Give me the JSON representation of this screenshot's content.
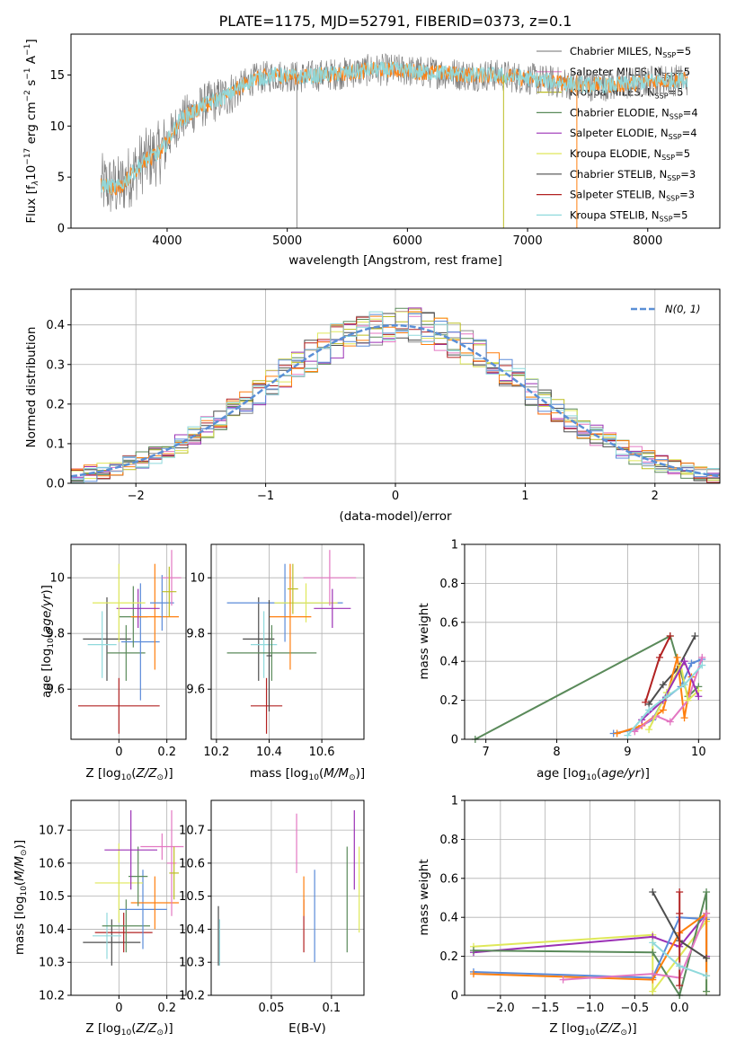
{
  "figure_title": "PLATE=1175, MJD=52791, FIBERID=0373, z=0.1",
  "colors": {
    "chabrier_miles": "#8c8c8c",
    "salpeter_miles": "#e377c2",
    "kroupa_miles": "#bcbd22",
    "chabrier_elodie": "#5a8a5a",
    "salpeter_elodie": "#9b30b5",
    "kroupa_elodie": "#dfe85a",
    "chabrier_stelib": "#4d4d4d",
    "salpeter_stelib": "#b22222",
    "kroupa_stelib": "#8fd9dc",
    "orange": "#ff7f0e",
    "blue": "#5b8bd9",
    "gaussian": "#5a8fd6"
  },
  "legend_entries": [
    {
      "prefix": "Chabrier MILES, N",
      "sub": "SSP",
      "suffix": "=5",
      "color": "chabrier_miles"
    },
    {
      "prefix": "Salpeter MILES, N",
      "sub": "SSP",
      "suffix": "=5",
      "color": "salpeter_miles"
    },
    {
      "prefix": "Kroupa MILES, N",
      "sub": "SSP",
      "suffix": "=5",
      "color": "kroupa_miles"
    },
    {
      "prefix": "Chabrier ELODIE, N",
      "sub": "SSP",
      "suffix": "=4",
      "color": "chabrier_elodie"
    },
    {
      "prefix": "Salpeter ELODIE, N",
      "sub": "SSP",
      "suffix": "=4",
      "color": "salpeter_elodie"
    },
    {
      "prefix": "Kroupa ELODIE, N",
      "sub": "SSP",
      "suffix": "=5",
      "color": "kroupa_elodie"
    },
    {
      "prefix": "Chabrier STELIB, N",
      "sub": "SSP",
      "suffix": "=3",
      "color": "chabrier_stelib"
    },
    {
      "prefix": "Salpeter STELIB, N",
      "sub": "SSP",
      "suffix": "=3",
      "color": "salpeter_stelib"
    },
    {
      "prefix": "Kroupa STELIB, N",
      "sub": "SSP",
      "suffix": "=5",
      "color": "kroupa_stelib"
    }
  ],
  "chart_data": [
    {
      "id": "spectrum",
      "type": "line",
      "xlabel": "wavelength [Angstrom, rest frame]",
      "ylabel_parts": [
        "Flux [f",
        "λ",
        "10",
        "−17",
        " erg cm",
        "−2",
        " s",
        "−1",
        " A",
        "−1",
        "]"
      ],
      "xlim": [
        3200,
        8600
      ],
      "ylim": [
        0,
        19
      ],
      "xticks": [
        4000,
        5000,
        6000,
        7000,
        8000
      ],
      "yticks": [
        0,
        5,
        10,
        15
      ],
      "legend_position": "upper right",
      "observed_anchors": {
        "x": [
          3450,
          3600,
          3800,
          3950,
          4100,
          4300,
          4500,
          4700,
          4900,
          5100,
          5300,
          5500,
          5700,
          5900,
          6100,
          6300,
          6500,
          6700,
          6900,
          7100,
          7300,
          7500,
          7700,
          7900,
          8100,
          8300
        ],
        "y": [
          4.2,
          4.0,
          6.5,
          7.5,
          10.5,
          12.0,
          13.0,
          14.5,
          15.0,
          14.8,
          15.0,
          15.2,
          15.5,
          15.5,
          15.3,
          15.2,
          15.0,
          15.0,
          14.8,
          14.5,
          14.2,
          14.0,
          14.0,
          14.2,
          14.5,
          14.5
        ]
      },
      "model_drop_lines": [
        {
          "x": 6800,
          "color": "kroupa_miles"
        },
        {
          "x": 7410,
          "color": "orange"
        },
        {
          "x": 5080,
          "color": "chabrier_miles"
        }
      ]
    },
    {
      "id": "residuals",
      "type": "step-histogram",
      "xlabel": "(data-model)/error",
      "ylabel": "Normed distribution",
      "xlim": [
        -2.5,
        2.5
      ],
      "ylim": [
        0,
        0.49
      ],
      "xticks": [
        -2,
        -1,
        0,
        1,
        2
      ],
      "xtick_labels": [
        "−2",
        "−1",
        "0",
        "1",
        "2"
      ],
      "yticks": [
        0.0,
        0.1,
        0.2,
        0.3,
        0.4
      ],
      "ytick_labels": [
        "0.0",
        "0.1",
        "0.2",
        "0.3",
        "0.4"
      ],
      "bin_width": 0.1,
      "gaussian_label": "N(0, 1)",
      "legend_position": "upper right"
    },
    {
      "id": "age_vs_Z",
      "type": "errorbar",
      "xlabel": "Z [log10(Z/Z⊙)]",
      "ylabel": "age [log10(age/yr)]",
      "xlim": [
        -0.2,
        0.28
      ],
      "ylim": [
        9.42,
        10.12
      ],
      "xticks": [
        0.0,
        0.2
      ],
      "yticks": [
        9.6,
        9.8,
        10.0
      ],
      "points": [
        {
          "x": 0.0,
          "y": 9.54,
          "xerr": 0.17,
          "yerr": 0.1,
          "color": "salpeter_stelib"
        },
        {
          "x": -0.05,
          "y": 9.78,
          "xerr": 0.1,
          "yerr": 0.15,
          "color": "chabrier_stelib"
        },
        {
          "x": -0.07,
          "y": 9.76,
          "xerr": 0.06,
          "yerr": 0.12,
          "color": "kroupa_stelib"
        },
        {
          "x": 0.03,
          "y": 9.73,
          "xerr": 0.08,
          "yerr": 0.1,
          "color": "chabrier_elodie"
        },
        {
          "x": 0.09,
          "y": 9.77,
          "xerr": 0.08,
          "yerr": 0.21,
          "color": "blue"
        },
        {
          "x": 0.06,
          "y": 9.86,
          "xerr": 0.06,
          "yerr": 0.11,
          "color": "chabrier_elodie"
        },
        {
          "x": 0.15,
          "y": 9.86,
          "xerr": 0.1,
          "yerr": 0.19,
          "color": "orange"
        },
        {
          "x": 0.08,
          "y": 9.89,
          "xerr": 0.09,
          "yerr": 0.07,
          "color": "salpeter_elodie"
        },
        {
          "x": 0.0,
          "y": 9.91,
          "xerr": 0.11,
          "yerr": 0.14,
          "color": "kroupa_elodie"
        },
        {
          "x": 0.18,
          "y": 9.91,
          "xerr": 0.05,
          "yerr": 0.1,
          "color": "blue"
        },
        {
          "x": 0.22,
          "y": 10.0,
          "xerr": 0.04,
          "yerr": 0.1,
          "color": "salpeter_miles"
        },
        {
          "x": 0.21,
          "y": 9.95,
          "xerr": 0.03,
          "yerr": 0.09,
          "color": "kroupa_miles"
        }
      ]
    },
    {
      "id": "age_vs_mass",
      "type": "errorbar",
      "xlabel": "mass [log10(M/M⊙)]",
      "ylabel": "",
      "xlim": [
        10.18,
        10.76
      ],
      "ylim": [
        9.42,
        10.12
      ],
      "xticks": [
        10.2,
        10.4,
        10.6
      ],
      "yticks": [
        9.6,
        9.8,
        10.0
      ],
      "points": [
        {
          "x": 10.39,
          "y": 9.54,
          "xerr": 0.06,
          "yerr": 0.1,
          "color": "salpeter_stelib"
        },
        {
          "x": 10.36,
          "y": 9.78,
          "xerr": 0.06,
          "yerr": 0.15,
          "color": "chabrier_stelib"
        },
        {
          "x": 10.38,
          "y": 9.76,
          "xerr": 0.05,
          "yerr": 0.12,
          "color": "kroupa_stelib"
        },
        {
          "x": 10.41,
          "y": 9.73,
          "xerr": 0.17,
          "yerr": 0.1,
          "color": "chabrier_elodie"
        },
        {
          "x": 10.46,
          "y": 9.91,
          "xerr": 0.22,
          "yerr": 0.14,
          "color": "blue"
        },
        {
          "x": 10.54,
          "y": 9.91,
          "xerr": 0.12,
          "yerr": 0.07,
          "color": "kroupa_elodie"
        },
        {
          "x": 10.48,
          "y": 9.86,
          "xerr": 0.08,
          "yerr": 0.19,
          "color": "orange"
        },
        {
          "x": 10.64,
          "y": 9.89,
          "xerr": 0.07,
          "yerr": 0.07,
          "color": "salpeter_elodie"
        },
        {
          "x": 10.63,
          "y": 10.0,
          "xerr": 0.1,
          "yerr": 0.1,
          "color": "salpeter_miles"
        },
        {
          "x": 10.49,
          "y": 9.96,
          "xerr": 0.02,
          "yerr": 0.09,
          "color": "kroupa_miles"
        },
        {
          "x": 10.4,
          "y": 9.72,
          "xerr": 0.01,
          "yerr": 0.2,
          "color": "chabrier_stelib"
        }
      ]
    },
    {
      "id": "massweight_vs_age",
      "type": "line",
      "xlabel": "age [log10(age/yr)]",
      "ylabel": "mass weight",
      "xlim": [
        6.7,
        10.3
      ],
      "ylim": [
        0,
        1.0
      ],
      "xticks": [
        7,
        8,
        9,
        10
      ],
      "yticks": [
        0.0,
        0.2,
        0.4,
        0.6,
        0.8,
        1.0
      ],
      "series": [
        {
          "color": "chabrier_elodie",
          "x": [
            6.85,
            9.6,
            9.85,
            10.0
          ],
          "y": [
            0.0,
            0.53,
            0.22,
            0.27
          ]
        },
        {
          "color": "salpeter_stelib",
          "x": [
            9.25,
            9.45,
            9.6
          ],
          "y": [
            0.19,
            0.42,
            0.53
          ]
        },
        {
          "color": "chabrier_stelib",
          "x": [
            9.3,
            9.5,
            9.7,
            9.95
          ],
          "y": [
            0.18,
            0.28,
            0.36,
            0.53
          ]
        },
        {
          "color": "blue",
          "x": [
            8.8,
            9.1,
            9.35,
            9.5,
            9.75,
            9.9,
            10.05
          ],
          "y": [
            0.03,
            0.05,
            0.1,
            0.2,
            0.27,
            0.39,
            0.41
          ]
        },
        {
          "color": "orange",
          "x": [
            8.85,
            9.2,
            9.5,
            9.7,
            9.8,
            9.9
          ],
          "y": [
            0.03,
            0.07,
            0.15,
            0.42,
            0.11,
            0.32
          ]
        },
        {
          "color": "salpeter_miles",
          "x": [
            9.1,
            9.4,
            9.6,
            9.85,
            10.05
          ],
          "y": [
            0.04,
            0.12,
            0.09,
            0.2,
            0.42
          ]
        },
        {
          "color": "kroupa_elodie",
          "x": [
            9.3,
            9.55,
            9.75,
            9.85,
            10.0
          ],
          "y": [
            0.05,
            0.24,
            0.38,
            0.2,
            0.25
          ]
        },
        {
          "color": "salpeter_elodie",
          "x": [
            9.2,
            9.5,
            9.8,
            10.0
          ],
          "y": [
            0.1,
            0.2,
            0.4,
            0.22
          ]
        },
        {
          "color": "kroupa_stelib",
          "x": [
            9.0,
            9.3,
            9.55,
            9.8,
            10.05
          ],
          "y": [
            0.02,
            0.15,
            0.22,
            0.28,
            0.38
          ]
        }
      ]
    },
    {
      "id": "mass_vs_Z",
      "type": "errorbar",
      "xlabel": "Z [log10(Z/Z⊙)]",
      "ylabel": "mass [log10(M/M⊙)]",
      "xlim": [
        -0.2,
        0.28
      ],
      "ylim": [
        10.2,
        10.79
      ],
      "xticks": [
        0.0,
        0.2
      ],
      "yticks": [
        10.2,
        10.3,
        10.4,
        10.5,
        10.6,
        10.7
      ],
      "points": [
        {
          "x": -0.03,
          "y": 10.36,
          "xerr": 0.12,
          "yerr": 0.07,
          "color": "chabrier_stelib"
        },
        {
          "x": 0.02,
          "y": 10.39,
          "xerr": 0.12,
          "yerr": 0.06,
          "color": "salpeter_stelib"
        },
        {
          "x": -0.05,
          "y": 10.38,
          "xerr": 0.06,
          "yerr": 0.07,
          "color": "kroupa_stelib"
        },
        {
          "x": 0.03,
          "y": 10.41,
          "xerr": 0.1,
          "yerr": 0.08,
          "color": "chabrier_elodie"
        },
        {
          "x": 0.1,
          "y": 10.46,
          "xerr": 0.1,
          "yerr": 0.12,
          "color": "blue"
        },
        {
          "x": 0.15,
          "y": 10.48,
          "xerr": 0.1,
          "yerr": 0.08,
          "color": "orange"
        },
        {
          "x": 0.0,
          "y": 10.54,
          "xerr": 0.1,
          "yerr": 0.12,
          "color": "kroupa_elodie"
        },
        {
          "x": 0.08,
          "y": 10.56,
          "xerr": 0.04,
          "yerr": 0.09,
          "color": "chabrier_elodie"
        },
        {
          "x": 0.05,
          "y": 10.64,
          "xerr": 0.11,
          "yerr": 0.12,
          "color": "salpeter_elodie"
        },
        {
          "x": 0.18,
          "y": 10.65,
          "xerr": 0.09,
          "yerr": 0.04,
          "color": "salpeter_miles"
        },
        {
          "x": 0.22,
          "y": 10.6,
          "xerr": 0.02,
          "yerr": 0.16,
          "color": "salpeter_miles"
        },
        {
          "x": 0.23,
          "y": 10.57,
          "xerr": 0.02,
          "yerr": 0.08,
          "color": "kroupa_miles"
        }
      ]
    },
    {
      "id": "mass_vs_ebv",
      "type": "errorbar",
      "xlabel": "E(B-V)",
      "ylabel": "",
      "xlim": [
        0.0,
        0.127
      ],
      "ylim": [
        10.2,
        10.79
      ],
      "xticks": [
        0.05,
        0.1
      ],
      "yticks": [
        10.2,
        10.3,
        10.4,
        10.5,
        10.6,
        10.7
      ],
      "points": [
        {
          "x": 0.006,
          "y": 10.38,
          "xerr": 0.0,
          "yerr": 0.09,
          "color": "chabrier_stelib"
        },
        {
          "x": 0.007,
          "y": 10.36,
          "xerr": 0.0,
          "yerr": 0.07,
          "color": "kroupa_stelib"
        },
        {
          "x": 0.071,
          "y": 10.66,
          "xerr": 0.0,
          "yerr": 0.09,
          "color": "salpeter_miles"
        },
        {
          "x": 0.077,
          "y": 10.41,
          "xerr": 0.0,
          "yerr": 0.08,
          "color": "salpeter_stelib"
        },
        {
          "x": 0.077,
          "y": 10.5,
          "xerr": 0.0,
          "yerr": 0.06,
          "color": "orange"
        },
        {
          "x": 0.086,
          "y": 10.44,
          "xerr": 0.0,
          "yerr": 0.14,
          "color": "blue"
        },
        {
          "x": 0.113,
          "y": 10.49,
          "xerr": 0.0,
          "yerr": 0.16,
          "color": "chabrier_elodie"
        },
        {
          "x": 0.119,
          "y": 10.64,
          "xerr": 0.0,
          "yerr": 0.12,
          "color": "salpeter_elodie"
        },
        {
          "x": 0.123,
          "y": 10.52,
          "xerr": 0.0,
          "yerr": 0.13,
          "color": "kroupa_elodie"
        }
      ]
    },
    {
      "id": "massweight_vs_Z",
      "type": "line",
      "xlabel": "Z [log10(Z/Z⊙)]",
      "ylabel": "mass weight",
      "xlim": [
        -2.4,
        0.45
      ],
      "ylim": [
        0,
        1.0
      ],
      "xticks": [
        -2.0,
        -1.5,
        -1.0,
        -0.5,
        0.0
      ],
      "xtick_labels": [
        "−2.0",
        "−1.5",
        "−1.0",
        "−0.5",
        "0.0"
      ],
      "yticks": [
        0.0,
        0.2,
        0.4,
        0.6,
        0.8,
        1.0
      ],
      "series": [
        {
          "color": "kroupa_elodie",
          "x": [
            -2.3,
            -0.3,
            -0.3,
            0.3,
            0.3
          ],
          "y": [
            0.25,
            0.31,
            0.02,
            0.38,
            0.02
          ]
        },
        {
          "color": "salpeter_elodie",
          "x": [
            -2.3,
            -0.3,
            0.0,
            0.3,
            0.3
          ],
          "y": [
            0.22,
            0.3,
            0.25,
            0.42,
            0.2
          ]
        },
        {
          "color": "chabrier_elodie",
          "x": [
            -2.3,
            -0.3,
            0.0,
            0.3,
            0.3
          ],
          "y": [
            0.23,
            0.22,
            0.0,
            0.53,
            0.02
          ]
        },
        {
          "color": "blue",
          "x": [
            -2.3,
            -0.3,
            0.0,
            0.3
          ],
          "y": [
            0.12,
            0.09,
            0.4,
            0.39
          ]
        },
        {
          "color": "orange",
          "x": [
            -2.3,
            -0.3,
            0.0,
            0.3,
            0.3
          ],
          "y": [
            0.11,
            0.08,
            0.32,
            0.42,
            0.1
          ]
        },
        {
          "color": "salpeter_miles",
          "x": [
            -1.3,
            -0.3,
            0.0,
            0.3
          ],
          "y": [
            0.08,
            0.11,
            0.09,
            0.42
          ]
        },
        {
          "color": "chabrier_stelib",
          "x": [
            -0.3,
            0.0,
            0.3
          ],
          "y": [
            0.53,
            0.28,
            0.19
          ]
        },
        {
          "color": "salpeter_stelib",
          "x": [
            0.0,
            0.0,
            0.0
          ],
          "y": [
            0.53,
            0.42,
            0.05
          ]
        },
        {
          "color": "kroupa_stelib",
          "x": [
            -0.3,
            0.0,
            0.3
          ],
          "y": [
            0.27,
            0.15,
            0.1
          ]
        }
      ]
    }
  ]
}
